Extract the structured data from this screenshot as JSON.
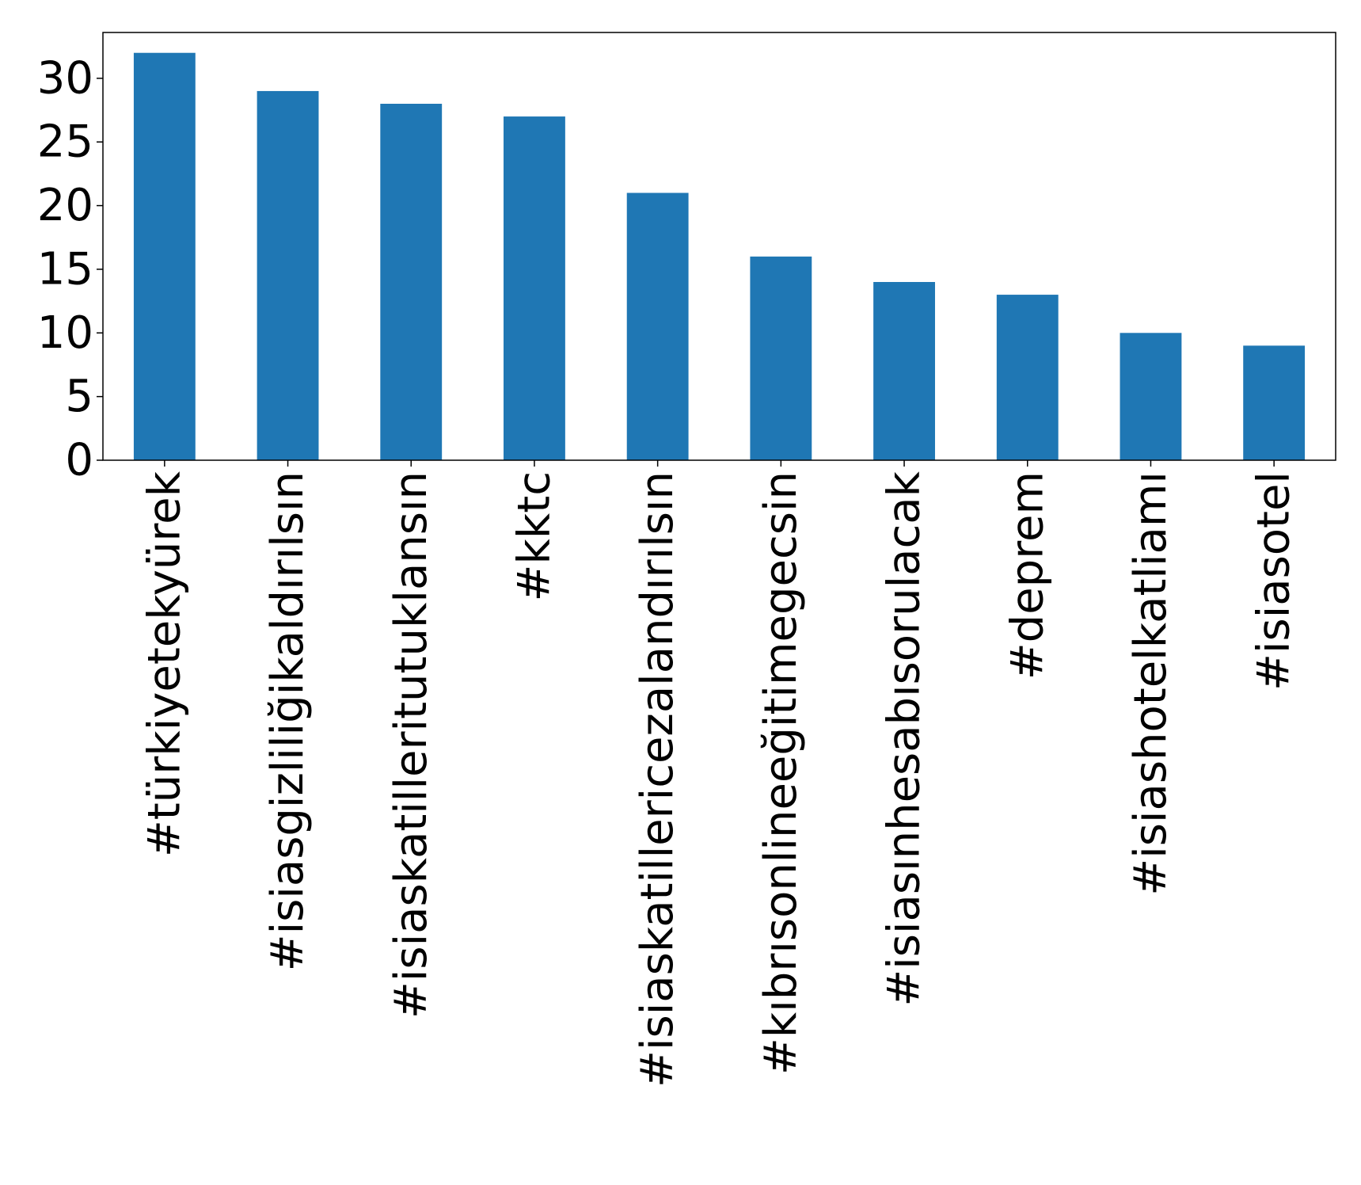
{
  "chart_data": {
    "type": "bar",
    "categories": [
      "#türkiyetekyürek",
      "#isiasgizliliğikaldırılsın",
      "#isiaskatilleritutuklansın",
      "#kktc",
      "#isiaskatillericezalandırılsın",
      "#kıbrısonlineeğitimegecsin",
      "#isiasınhesabısorulacak",
      "#deprem",
      "#isiashotelkatliamı",
      "#isiasotel"
    ],
    "values": [
      32,
      29,
      28,
      27,
      21,
      16,
      14,
      13,
      10,
      9
    ],
    "yticks": [
      0,
      5,
      10,
      15,
      20,
      25,
      30
    ],
    "ylim": [
      0,
      33.6
    ],
    "title": "",
    "xlabel": "",
    "ylabel": "",
    "grid": false,
    "colors": {
      "bar": "#1f77b4",
      "axis": "#000000",
      "background": "#ffffff"
    }
  }
}
